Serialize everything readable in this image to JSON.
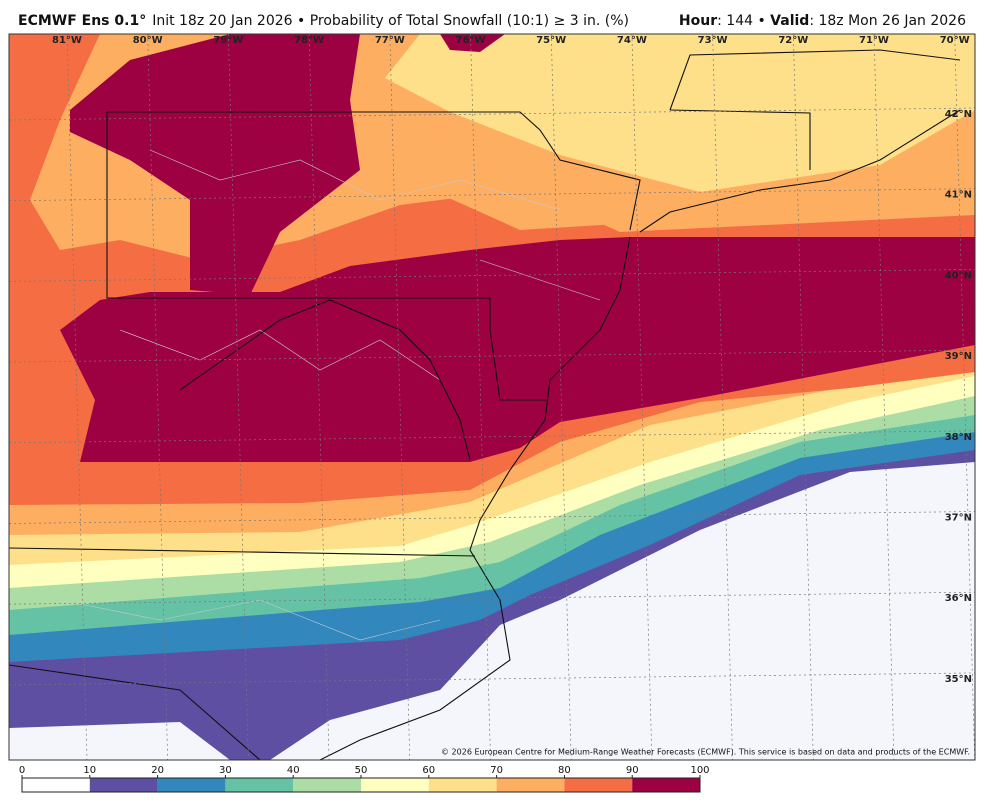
{
  "header": {
    "model": "ECMWF Ens 0.1°",
    "description": "Init 18z 20 Jan 2026 • Probability of Total Snowfall (10:1) ≥ 3 in. (%)",
    "hour_label": "Hour",
    "hour_value": ": 144 • ",
    "valid_label": "Valid",
    "valid_value": ": 18z Mon 26 Jan 2026"
  },
  "map": {
    "lon_labels": [
      "81°W",
      "80°W",
      "79°W",
      "78°W",
      "77°W",
      "76°W",
      "75°W",
      "74°W",
      "73°W",
      "72°W",
      "71°W",
      "70°W"
    ],
    "lat_labels": [
      "42°N",
      "41°N",
      "40°N",
      "39°N",
      "38°N",
      "37°N",
      "36°N",
      "35°N"
    ],
    "copyright": "© 2026 European Centre for Medium-Range Weather Forecasts (ECMWF). This service is based on data and products of the ECMWF."
  },
  "colorbar": {
    "ticks": [
      0,
      10,
      20,
      30,
      40,
      50,
      60,
      70,
      80,
      90,
      100
    ],
    "colors": [
      "#ffffff",
      "#5e4fa2",
      "#3288bd",
      "#66c2a5",
      "#abdda4",
      "#ffffbf",
      "#fee08b",
      "#fdae61",
      "#f46d43",
      "#9e0142"
    ]
  }
}
